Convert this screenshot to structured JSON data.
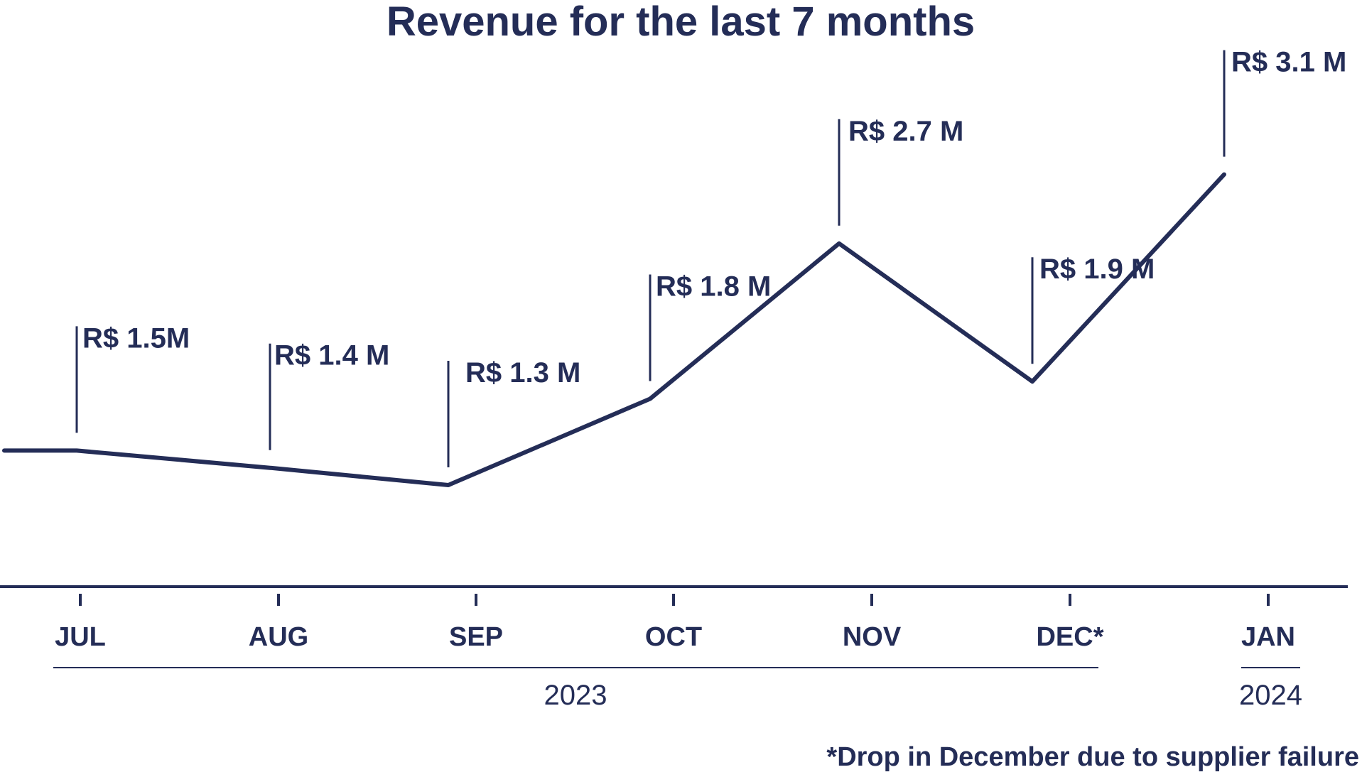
{
  "colors": {
    "ink": "#242d57",
    "background": "#ffffff"
  },
  "chart_data": {
    "type": "line",
    "title": "Revenue for the last 7 months",
    "xlabel": "",
    "ylabel": "",
    "categories": [
      "JUL",
      "AUG",
      "SEP",
      "OCT",
      "NOV",
      "DEC*",
      "JAN"
    ],
    "series": [
      {
        "values": [
          1.5,
          1.4,
          1.3,
          1.8,
          2.7,
          1.9,
          3.1
        ]
      }
    ],
    "value_labels": [
      "R$ 1.5M",
      "R$ 1.4 M",
      "R$ 1.3 M",
      "R$ 1.8 M",
      "R$ 2.7 M",
      "R$ 1.9 M",
      "R$ 3.1 M"
    ],
    "year_groups": [
      {
        "label": "2023",
        "from": 0,
        "to": 5
      },
      {
        "label": "2024",
        "from": 6,
        "to": 6
      }
    ],
    "grid": false,
    "legend": "none",
    "footnote": "*Drop in December due to supplier failure"
  }
}
